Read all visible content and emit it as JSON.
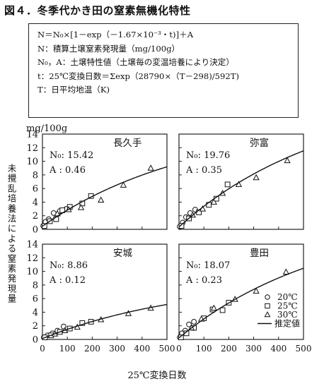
{
  "figure_title": "図４．冬季代かき田の窒素無機化特性",
  "formula_box": {
    "lines": [
      "N＝N₀×[1－exp（－1.67×10⁻³・t)]＋A",
      "N：積算土壌窒素発現量（mg/100g）",
      "N₀，A：土壌特性値（土壌毎の変温培養により決定）",
      "t：25℃変換日数＝Σexp（28790×（T－298)/592T)",
      "T：日平均地温（K)"
    ]
  },
  "y_unit": "mg/100g",
  "y_axis_label": "未攪乱培養法による窒素発現量",
  "x_axis_label": "25℃変換日数",
  "legend": [
    {
      "marker": "circle",
      "label": "20℃"
    },
    {
      "marker": "square",
      "label": "25℃"
    },
    {
      "marker": "triangle",
      "label": "30℃"
    },
    {
      "marker": "line",
      "label": "推定値"
    }
  ],
  "chart_data": [
    {
      "type": "scatter",
      "name": "長久手",
      "params": {
        "N0_label": "N₀: 15.42",
        "A_label": "A : 0.46",
        "N0": 15.42,
        "A": 0.46
      },
      "xlim": [
        0,
        500
      ],
      "ylim": [
        0,
        14
      ],
      "xticks": [
        0,
        100,
        200,
        300,
        400,
        500
      ],
      "yticks": [
        0,
        2,
        4,
        6,
        8,
        10,
        12,
        14
      ],
      "series": [
        {
          "name": "20℃",
          "marker": "circle",
          "points": [
            [
              3,
              0.5
            ],
            [
              12,
              1.1
            ],
            [
              25,
              1.5
            ],
            [
              45,
              2.4
            ],
            [
              70,
              2.7
            ],
            [
              95,
              3.0
            ]
          ]
        },
        {
          "name": "25℃",
          "marker": "square",
          "points": [
            [
              8,
              0.5
            ],
            [
              30,
              1.2
            ],
            [
              55,
              1.5
            ],
            [
              80,
              2.8
            ],
            [
              110,
              3.3
            ],
            [
              160,
              3.8
            ],
            [
              195,
              4.9
            ]
          ]
        },
        {
          "name": "30℃",
          "marker": "triangle",
          "points": [
            [
              60,
              2.3
            ],
            [
              105,
              2.9
            ],
            [
              155,
              3.2
            ],
            [
              235,
              4.3
            ],
            [
              325,
              6.5
            ],
            [
              435,
              9.0
            ]
          ]
        },
        {
          "name": "推定値",
          "marker": "line",
          "curve": {
            "N0": 15.42,
            "A": 0.46,
            "k": 0.00167,
            "x_max": 500
          }
        }
      ]
    },
    {
      "type": "scatter",
      "name": "弥富",
      "params": {
        "N0_label": "N₀: 19.76",
        "A_label": "A : 0.35",
        "N0": 19.76,
        "A": 0.35
      },
      "xlim": [
        0,
        500
      ],
      "ylim": [
        0,
        14
      ],
      "xticks": [
        0,
        100,
        200,
        300,
        400,
        500
      ],
      "yticks": [
        0,
        2,
        4,
        6,
        8,
        10,
        12,
        14
      ],
      "series": [
        {
          "name": "20℃",
          "marker": "circle",
          "points": [
            [
              3,
              0.4
            ],
            [
              15,
              1.0
            ],
            [
              28,
              1.8
            ],
            [
              45,
              2.4
            ],
            [
              65,
              2.9
            ]
          ]
        },
        {
          "name": "25℃",
          "marker": "square",
          "points": [
            [
              10,
              0.5
            ],
            [
              40,
              1.6
            ],
            [
              80,
              2.5
            ],
            [
              120,
              3.6
            ],
            [
              150,
              4.5
            ],
            [
              195,
              6.6
            ]
          ]
        },
        {
          "name": "30℃",
          "marker": "triangle",
          "points": [
            [
              55,
              2.1
            ],
            [
              95,
              3.0
            ],
            [
              140,
              4.0
            ],
            [
              175,
              5.3
            ],
            [
              240,
              6.6
            ],
            [
              310,
              7.6
            ],
            [
              435,
              10.1
            ]
          ]
        },
        {
          "name": "推定値",
          "marker": "line",
          "curve": {
            "N0": 19.76,
            "A": 0.35,
            "k": 0.00167,
            "x_max": 500
          }
        }
      ]
    },
    {
      "type": "scatter",
      "name": "安城",
      "params": {
        "N0_label": "N₀: 8.86",
        "A_label": "A : 0.12",
        "N0": 8.86,
        "A": 0.12
      },
      "xlim": [
        0,
        500
      ],
      "ylim": [
        0,
        14
      ],
      "xticks": [
        0,
        100,
        200,
        300,
        400,
        500
      ],
      "yticks": [
        0,
        2,
        4,
        6,
        8,
        10,
        12,
        14
      ],
      "series": [
        {
          "name": "20℃",
          "marker": "circle",
          "points": [
            [
              5,
              0.3
            ],
            [
              20,
              0.6
            ],
            [
              40,
              0.9
            ],
            [
              60,
              1.3
            ],
            [
              85,
              1.9
            ]
          ]
        },
        {
          "name": "25℃",
          "marker": "square",
          "points": [
            [
              10,
              0.3
            ],
            [
              35,
              0.6
            ],
            [
              70,
              1.1
            ],
            [
              110,
              1.6
            ],
            [
              160,
              2.4
            ],
            [
              195,
              2.6
            ]
          ]
        },
        {
          "name": "30℃",
          "marker": "triangle",
          "points": [
            [
              50,
              0.8
            ],
            [
              90,
              1.3
            ],
            [
              140,
              1.8
            ],
            [
              235,
              2.9
            ],
            [
              345,
              3.8
            ],
            [
              435,
              4.6
            ]
          ]
        },
        {
          "name": "推定値",
          "marker": "line",
          "curve": {
            "N0": 8.86,
            "A": 0.12,
            "k": 0.00167,
            "x_max": 500
          }
        }
      ]
    },
    {
      "type": "scatter",
      "name": "豊田",
      "params": {
        "N0_label": "N₀: 18.07",
        "A_label": "A : 0.23",
        "N0": 18.07,
        "A": 0.23
      },
      "xlim": [
        0,
        500
      ],
      "ylim": [
        0,
        14
      ],
      "xticks": [
        0,
        100,
        200,
        300,
        400,
        500
      ],
      "yticks": [
        0,
        2,
        4,
        6,
        8,
        10,
        12,
        14
      ],
      "series": [
        {
          "name": "20℃",
          "marker": "circle",
          "points": [
            [
              3,
              0.3
            ],
            [
              12,
              0.9
            ],
            [
              25,
              1.3
            ],
            [
              40,
              2.2
            ],
            [
              60,
              2.6
            ]
          ]
        },
        {
          "name": "25℃",
          "marker": "square",
          "points": [
            [
              8,
              0.3
            ],
            [
              30,
              0.9
            ],
            [
              60,
              1.7
            ],
            [
              100,
              3.1
            ],
            [
              135,
              4.4
            ],
            [
              175,
              4.3
            ],
            [
              200,
              5.4
            ]
          ]
        },
        {
          "name": "30℃",
          "marker": "triangle",
          "points": [
            [
              50,
              1.7
            ],
            [
              90,
              3.0
            ],
            [
              140,
              4.6
            ],
            [
              225,
              5.9
            ],
            [
              310,
              7.1
            ],
            [
              430,
              9.9
            ]
          ]
        },
        {
          "name": "推定値",
          "marker": "line",
          "curve": {
            "N0": 18.07,
            "A": 0.23,
            "k": 0.00167,
            "x_max": 500
          }
        }
      ]
    }
  ]
}
